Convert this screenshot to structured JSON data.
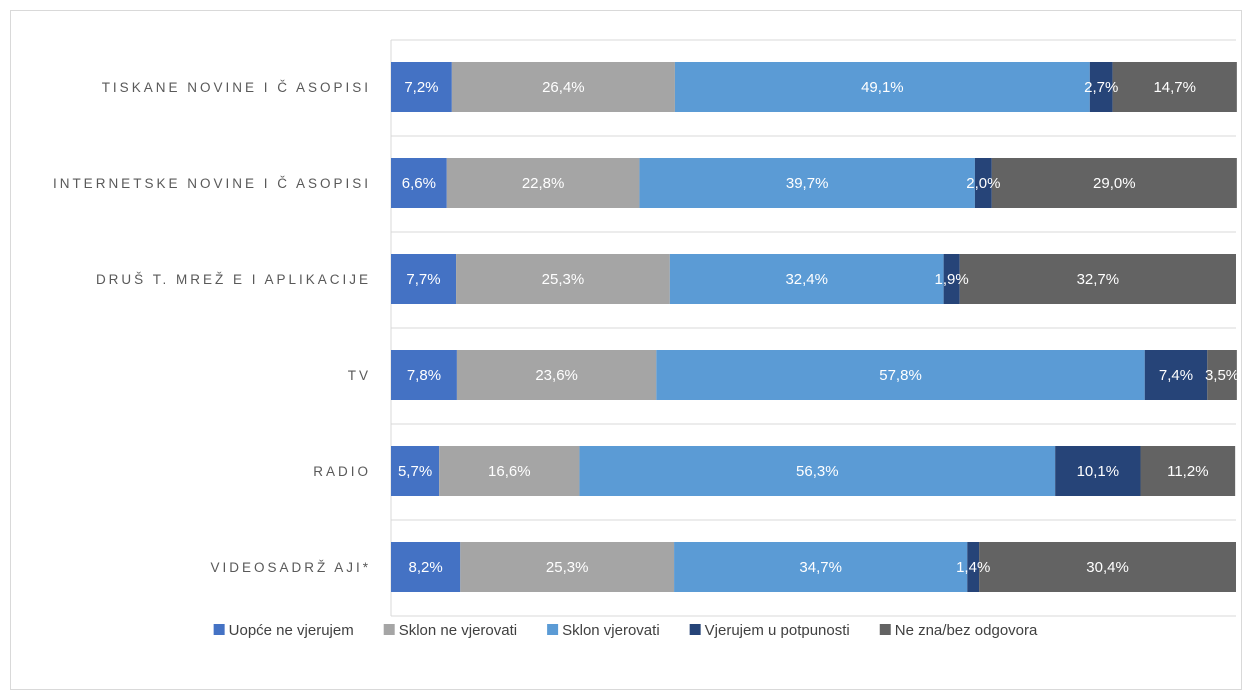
{
  "chart_data": {
    "type": "bar",
    "orientation": "horizontal",
    "stacked": true,
    "percent_stacked": true,
    "title": "",
    "xlabel": "",
    "ylabel": "",
    "xlim": [
      0,
      100
    ],
    "grid": true,
    "legend_position": "bottom",
    "categories": [
      "TISKANE NOVINE I Č ASOPISI",
      "INTERNETSKE NOVINE I Č ASOPISI",
      "DRUŠ T. MREŽ E I APLIKACIJE",
      "TV",
      "RADIO",
      "VIDEOSADRŽ AJI*"
    ],
    "series": [
      {
        "name": "Uopće ne vjerujem",
        "color": "#4472c4",
        "values": [
          7.2,
          6.6,
          7.7,
          7.8,
          5.7,
          8.2
        ],
        "labels": [
          "7,2%",
          "6,6%",
          "7,7%",
          "7,8%",
          "5,7%",
          "8,2%"
        ]
      },
      {
        "name": "Sklon ne vjerovati",
        "color": "#a5a5a5",
        "values": [
          26.4,
          22.8,
          25.3,
          23.6,
          16.6,
          25.3
        ],
        "labels": [
          "26,4%",
          "22,8%",
          "25,3%",
          "23,6%",
          "16,6%",
          "25,3%"
        ]
      },
      {
        "name": "Sklon vjerovati",
        "color": "#5b9bd5",
        "values": [
          49.1,
          39.7,
          32.4,
          57.8,
          56.3,
          34.7
        ],
        "labels": [
          "49,1%",
          "39,7%",
          "32,4%",
          "57,8%",
          "56,3%",
          "34,7%"
        ]
      },
      {
        "name": "Vjerujem u potpunosti",
        "color": "#264478",
        "values": [
          2.7,
          2.0,
          1.9,
          7.4,
          10.1,
          1.4
        ],
        "labels": [
          "2,7%",
          "2,0%",
          "1,9%",
          "7,4%",
          "10,1%",
          "1,4%"
        ]
      },
      {
        "name": "Ne zna/bez odgovora",
        "color": "#636363",
        "values": [
          14.7,
          29.0,
          32.7,
          3.5,
          11.2,
          30.4
        ],
        "labels": [
          "14,7%",
          "29,0%",
          "32,7%",
          "3,5%",
          "11,2%",
          "30,4%"
        ]
      }
    ]
  }
}
